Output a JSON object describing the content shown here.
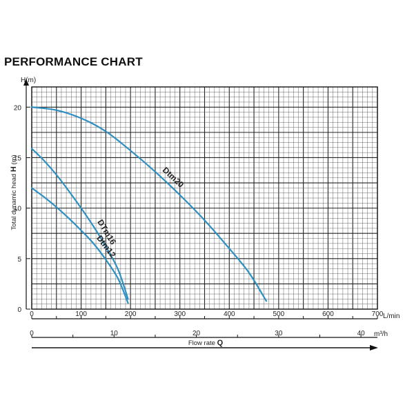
{
  "page_title": "PERFORMANCE CHART",
  "colors": {
    "curve": "#2d8fc2",
    "grid_major": "#222222",
    "grid_minor": "#555555",
    "axis": "#111111"
  },
  "chart_data": {
    "type": "line",
    "title": "PERFORMANCE CHART",
    "y_axis": {
      "unit_label": "H(m)",
      "title_prefix": "Total dynamic head ",
      "title_bold": "H",
      "title_suffix": " (m)",
      "range": [
        0,
        22
      ],
      "ticks": [
        0,
        5,
        10,
        15,
        20
      ],
      "tick_labels": [
        "0",
        "5",
        "10",
        "15",
        "20"
      ]
    },
    "x_axis_lmin": {
      "unit_label": "L/min",
      "range": [
        0,
        700
      ],
      "ticks": [
        0,
        100,
        200,
        300,
        400,
        500,
        600,
        700
      ],
      "tick_labels": [
        "0",
        "100",
        "200",
        "300",
        "400",
        "500",
        "600",
        "700"
      ]
    },
    "x_axis_m3h": {
      "unit_label": "m³/h",
      "ticks": [
        0,
        10,
        20,
        30,
        40
      ],
      "tick_labels": [
        "0",
        "10",
        "20",
        "30",
        "40"
      ]
    },
    "x_title_prefix": "Flow rate ",
    "x_title_bold": "Q",
    "grid": true,
    "series": [
      {
        "name": "Dtm20",
        "x": [
          0,
          50,
          100,
          150,
          200,
          250,
          300,
          350,
          400,
          440,
          475
        ],
        "y": [
          20,
          19.7,
          18.9,
          17.6,
          15.7,
          13.6,
          11.3,
          8.8,
          6.0,
          3.6,
          0.8
        ]
      },
      {
        "name": "DTm16",
        "x": [
          0,
          25,
          50,
          75,
          100,
          125,
          150,
          175,
          195
        ],
        "y": [
          15.9,
          14.7,
          13.3,
          11.7,
          10.0,
          8.2,
          6.2,
          3.9,
          1.0
        ]
      },
      {
        "name": "Dtm12",
        "x": [
          0,
          25,
          50,
          75,
          100,
          125,
          150,
          175,
          195
        ],
        "y": [
          12.0,
          11.1,
          10.1,
          9.0,
          7.8,
          6.5,
          4.9,
          3.0,
          0.6
        ]
      }
    ]
  }
}
